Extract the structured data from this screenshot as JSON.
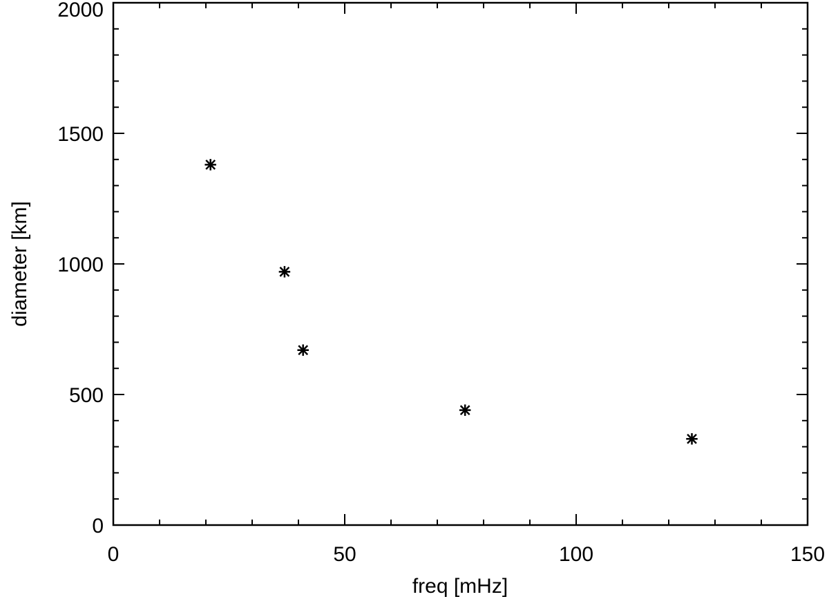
{
  "chart_data": {
    "type": "scatter",
    "title": "",
    "xlabel": "freq [mHz]",
    "ylabel": "diameter [km]",
    "xlim": [
      0,
      150
    ],
    "ylim": [
      0,
      2000
    ],
    "xticks": [
      0,
      50,
      100,
      150
    ],
    "yticks": [
      0,
      500,
      1000,
      1500,
      2000
    ],
    "xtick_labels": [
      "0",
      "50",
      "100",
      "150"
    ],
    "ytick_labels": [
      "0",
      "500",
      "1000",
      "1500",
      "2000"
    ],
    "x_minor_step": 10,
    "y_minor_step": 100,
    "marker": "asterisk",
    "grid": false,
    "color": "#000000",
    "points": [
      {
        "x": 21,
        "y": 1380
      },
      {
        "x": 37,
        "y": 970
      },
      {
        "x": 41,
        "y": 670
      },
      {
        "x": 76,
        "y": 440
      },
      {
        "x": 125,
        "y": 330
      }
    ]
  }
}
